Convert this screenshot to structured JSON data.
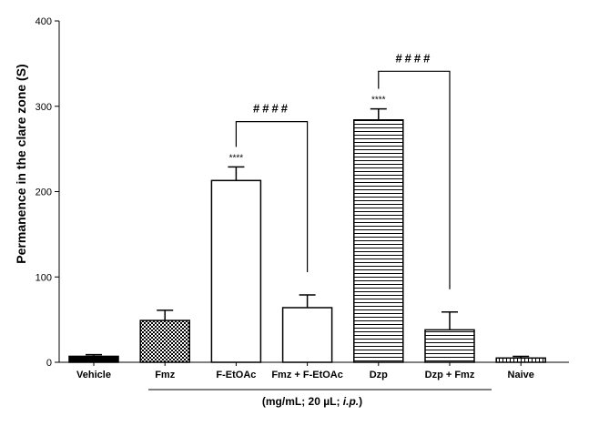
{
  "chart_data": {
    "type": "bar",
    "ylabel": "Permanence in the clare zone (S)",
    "xcaption_parts": [
      "(mg/mL; 20 µL; ",
      "i.p.",
      ")"
    ],
    "ylim": [
      0,
      400
    ],
    "yticks": [
      0,
      100,
      200,
      300,
      400
    ],
    "categories": [
      "Vehicle",
      "Fmz",
      "F-EtOAc",
      "Fmz + F-EtOAc",
      "Dzp",
      "Dzp + Fmz",
      "Naive"
    ],
    "values": [
      7,
      49,
      213,
      64,
      284,
      38,
      5
    ],
    "errors": [
      2,
      12,
      16,
      15,
      13,
      21,
      2
    ],
    "fills": [
      "solid-black",
      "checker",
      "white",
      "white",
      "hlines",
      "hlines",
      "vlines"
    ],
    "significance_stars": [
      {
        "category": "F-EtOAc",
        "text": "****"
      },
      {
        "category": "Dzp",
        "text": "****"
      }
    ],
    "brackets": [
      {
        "from": "F-EtOAc",
        "to": "Fmz + F-EtOAc",
        "text": "####",
        "level": 282
      },
      {
        "from": "Dzp",
        "to": "Dzp + Fmz",
        "text": "####",
        "level": 341
      }
    ]
  }
}
